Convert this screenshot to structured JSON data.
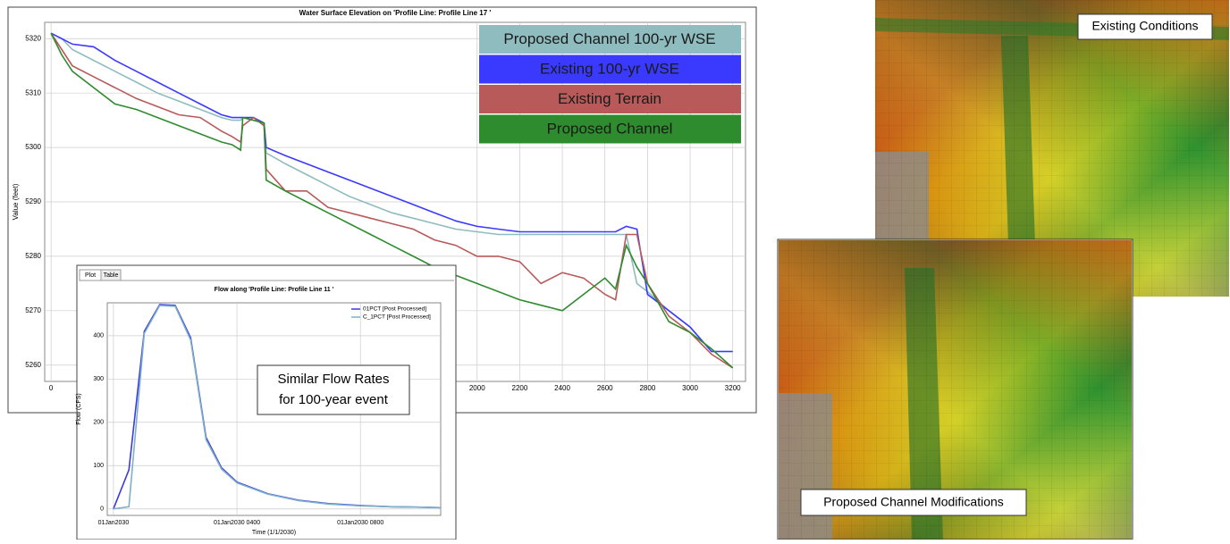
{
  "chart_data": [
    {
      "type": "line",
      "title": "Water Surface Elevation on 'Profile Line: Profile Line 17 '",
      "y_label": "Value (feet)",
      "x": [
        0,
        50,
        100,
        200,
        300,
        400,
        500,
        600,
        700,
        800,
        850,
        890,
        900,
        950,
        1000,
        1010,
        1100,
        1200,
        1300,
        1400,
        1500,
        1600,
        1700,
        1800,
        1900,
        2000,
        2100,
        2200,
        2300,
        2400,
        2500,
        2600,
        2650,
        2700,
        2750,
        2800,
        2900,
        3000,
        3100,
        3200
      ],
      "series": [
        {
          "name": "Proposed Channel 100-yr WSE",
          "color": "#8fbcbf",
          "values": [
            5321,
            5320,
            5318,
            5316,
            5314,
            5312,
            5310,
            5308.5,
            5307,
            5305.5,
            5305,
            5305,
            5305.5,
            5305,
            5304.5,
            5299,
            5297,
            5295,
            5293,
            5291,
            5289.5,
            5288,
            5287,
            5286,
            5285,
            5284.5,
            5284,
            5284,
            5284,
            5284,
            5284,
            5284,
            5284,
            5284,
            5275,
            5273.5,
            5270,
            5267,
            5262.5,
            5262.5
          ]
        },
        {
          "name": "Existing 100-yr WSE",
          "color": "#3a3aff",
          "values": [
            5321,
            5320,
            5319,
            5318.5,
            5316,
            5314,
            5312,
            5310,
            5308,
            5306,
            5305.5,
            5305.5,
            5305.5,
            5305.5,
            5304.5,
            5300,
            5298.5,
            5297,
            5295.5,
            5294,
            5292.5,
            5291,
            5289.5,
            5288,
            5286.5,
            5285.5,
            5285,
            5284.5,
            5284.5,
            5284.5,
            5284.5,
            5284.5,
            5284.5,
            5285.5,
            5285,
            5273,
            5270,
            5267,
            5262.5,
            5262.5
          ]
        },
        {
          "name": "Existing Terrain",
          "color": "#b85a5a",
          "values": [
            5321,
            5318,
            5315,
            5313,
            5311,
            5309,
            5307.5,
            5306,
            5305.5,
            5303,
            5302,
            5301,
            5304,
            5305.5,
            5304,
            5296,
            5292,
            5292,
            5289,
            5288,
            5287,
            5286,
            5285,
            5283,
            5282,
            5280,
            5280,
            5279,
            5275,
            5277,
            5276,
            5273,
            5272,
            5284,
            5284,
            5275,
            5269,
            5266,
            5262,
            5259.5
          ]
        },
        {
          "name": "Proposed Channel",
          "color": "#2e8b2e",
          "values": [
            5321,
            5317,
            5314,
            5311,
            5308,
            5307,
            5305.5,
            5304,
            5302.5,
            5301,
            5300.5,
            5299.5,
            5305.5,
            5305,
            5304.5,
            5294,
            5292,
            5290,
            5288,
            5286,
            5284,
            5282,
            5280,
            5278,
            5276.5,
            5275,
            5273.5,
            5272,
            5271,
            5270,
            5273,
            5276,
            5274,
            5282,
            5278,
            5275,
            5268,
            5266,
            5263,
            5259.5
          ]
        }
      ],
      "xlim": [
        -30,
        3260
      ],
      "ylim": [
        5257,
        5323
      ],
      "xticks": [
        0,
        2000,
        2200,
        2400,
        2600,
        2800,
        3000,
        3200
      ],
      "yticks": [
        5260,
        5270,
        5280,
        5290,
        5300,
        5310,
        5320
      ],
      "grid": true,
      "legend": "upper right"
    },
    {
      "type": "line",
      "title": "Flow along 'Profile Line: Profile Line 11 '",
      "tabs": [
        "Plot",
        "Table"
      ],
      "y_label": "Flow (CFS)",
      "x_label": "Time (1/1/2030)",
      "x": [
        0,
        0.5,
        1,
        1.5,
        2,
        2.5,
        3,
        3.5,
        4,
        5,
        6,
        7,
        8,
        9,
        10,
        10.6
      ],
      "series": [
        {
          "name": "01PCT [Post Processed]",
          "color": "#3a3ae0",
          "values": [
            0,
            90,
            410,
            472,
            470,
            395,
            165,
            95,
            62,
            35,
            20,
            12,
            8,
            5,
            4,
            3
          ]
        },
        {
          "name": "C_1PCT [Post Processed]",
          "color": "#7fb0c8",
          "values": [
            0,
            5,
            405,
            470,
            468,
            390,
            160,
            92,
            60,
            34,
            19,
            11,
            7,
            5,
            4,
            3
          ]
        }
      ],
      "xlim": [
        -0.2,
        10.6
      ],
      "ylim": [
        -15,
        476
      ],
      "xticks": [
        {
          "value": 0,
          "label": "01Jan2030"
        },
        {
          "value": 4,
          "label": "01Jan2030 0400"
        },
        {
          "value": 8,
          "label": "01Jan2030 0800"
        }
      ],
      "yticks": [
        0,
        100,
        200,
        300,
        400
      ],
      "grid": true,
      "legend": "upper right"
    }
  ],
  "callout": [
    "Similar Flow Rates",
    "for 100-year event"
  ],
  "maps": [
    {
      "label": "Existing Conditions"
    },
    {
      "label": "Proposed Channel Modifications"
    }
  ]
}
